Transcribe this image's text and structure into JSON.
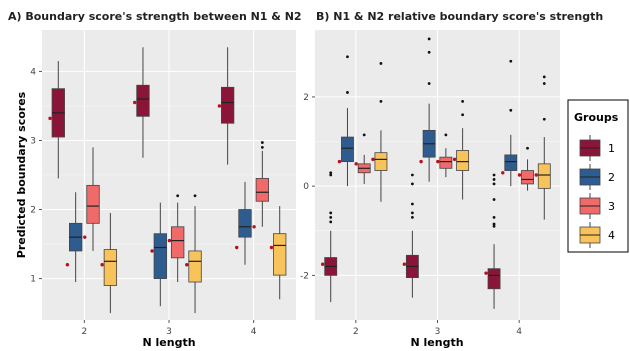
{
  "colors": {
    "panel_bg": "#ebebeb",
    "grid": "#ffffff",
    "outlier": "#111111",
    "mean_dot": "#b5121b",
    "box_stroke": "#444444"
  },
  "chart_data": [
    {
      "type": "box",
      "title": "A) Boundary score's strength between N1 & N2",
      "xlabel": "N length",
      "ylabel": "Predicted boundary scores",
      "categories": [
        "2",
        "3",
        "4"
      ],
      "ylim": [
        0.4,
        4.6
      ],
      "yticks": [
        1,
        2,
        3,
        4
      ],
      "grid": true,
      "series": [
        {
          "name": "1",
          "color": "#8b1538",
          "boxes": [
            {
              "min": 2.45,
              "q1": 3.05,
              "median": 3.4,
              "q3": 3.75,
              "max": 4.15,
              "mean": 3.32,
              "outliers": []
            },
            {
              "min": 2.75,
              "q1": 3.35,
              "median": 3.6,
              "q3": 3.8,
              "max": 4.35,
              "mean": 3.55,
              "outliers": []
            },
            {
              "min": 2.65,
              "q1": 3.25,
              "median": 3.55,
              "q3": 3.77,
              "max": 4.35,
              "mean": 3.5,
              "outliers": []
            }
          ]
        },
        {
          "name": "2",
          "color": "#2f5c8f",
          "boxes": [
            {
              "min": 0.95,
              "q1": 1.4,
              "median": 1.6,
              "q3": 1.8,
              "max": 2.25,
              "mean": 1.2,
              "outliers": []
            },
            {
              "min": 0.6,
              "q1": 1.0,
              "median": 1.45,
              "q3": 1.65,
              "max": 2.1,
              "mean": 1.4,
              "outliers": []
            },
            {
              "min": 1.2,
              "q1": 1.6,
              "median": 1.75,
              "q3": 2.0,
              "max": 2.4,
              "mean": 1.45,
              "outliers": []
            }
          ]
        },
        {
          "name": "3",
          "color": "#f06a6a",
          "boxes": [
            {
              "min": 1.4,
              "q1": 1.8,
              "median": 2.05,
              "q3": 2.35,
              "max": 2.9,
              "mean": 1.6,
              "outliers": []
            },
            {
              "min": 0.95,
              "q1": 1.3,
              "median": 1.55,
              "q3": 1.75,
              "max": 2.1,
              "mean": 1.55,
              "outliers": [
                2.2
              ]
            },
            {
              "min": 1.75,
              "q1": 2.12,
              "median": 2.25,
              "q3": 2.45,
              "max": 2.85,
              "mean": 1.75,
              "outliers": [
                2.9,
                2.97
              ]
            }
          ]
        },
        {
          "name": "4",
          "color": "#f8c35b",
          "boxes": [
            {
              "min": 0.5,
              "q1": 0.9,
              "median": 1.25,
              "q3": 1.42,
              "max": 1.95,
              "mean": 1.2,
              "outliers": []
            },
            {
              "min": 0.5,
              "q1": 0.95,
              "median": 1.25,
              "q3": 1.4,
              "max": 2.05,
              "mean": 1.2,
              "outliers": [
                2.2
              ]
            },
            {
              "min": 0.7,
              "q1": 1.05,
              "median": 1.48,
              "q3": 1.65,
              "max": 2.05,
              "mean": 1.45,
              "outliers": []
            }
          ]
        }
      ]
    },
    {
      "type": "box",
      "title": "B) N1 & N2 relative boundary score's strength",
      "xlabel": "N length",
      "ylabel": "",
      "categories": [
        "2",
        "3",
        "4"
      ],
      "ylim": [
        -3.0,
        3.5
      ],
      "yticks": [
        -2,
        0,
        2
      ],
      "grid": true,
      "series": [
        {
          "name": "1",
          "color": "#8b1538",
          "boxes": [
            {
              "min": -2.6,
              "q1": -2.0,
              "median": -1.8,
              "q3": -1.6,
              "max": -1.0,
              "mean": -1.75,
              "outliers": [
                -0.6,
                -0.7,
                -0.8,
                0.25,
                0.3
              ]
            },
            {
              "min": -2.5,
              "q1": -2.05,
              "median": -1.8,
              "q3": -1.55,
              "max": -1.0,
              "mean": -1.75,
              "outliers": [
                -0.4,
                -0.6,
                -0.7,
                0.25,
                0.05
              ]
            },
            {
              "min": -2.75,
              "q1": -2.3,
              "median": -2.0,
              "q3": -1.85,
              "max": -1.3,
              "mean": -1.95,
              "outliers": [
                -0.7,
                -0.85,
                -0.9,
                0.15,
                0.25,
                0.05,
                -0.3
              ]
            }
          ]
        },
        {
          "name": "2",
          "color": "#2f5c8f",
          "boxes": [
            {
              "min": 0.0,
              "q1": 0.55,
              "median": 0.85,
              "q3": 1.1,
              "max": 1.75,
              "mean": 0.55,
              "outliers": [
                2.1,
                2.9
              ]
            },
            {
              "min": 0.1,
              "q1": 0.65,
              "median": 0.95,
              "q3": 1.25,
              "max": 1.85,
              "mean": 0.55,
              "outliers": [
                2.3,
                3.0,
                3.3
              ]
            },
            {
              "min": 0.0,
              "q1": 0.35,
              "median": 0.55,
              "q3": 0.7,
              "max": 1.15,
              "mean": 0.3,
              "outliers": [
                1.7,
                2.8
              ]
            }
          ]
        },
        {
          "name": "3",
          "color": "#f06a6a",
          "boxes": [
            {
              "min": 0.05,
              "q1": 0.3,
              "median": 0.4,
              "q3": 0.5,
              "max": 0.7,
              "mean": 0.5,
              "outliers": [
                1.15
              ]
            },
            {
              "min": 0.2,
              "q1": 0.4,
              "median": 0.55,
              "q3": 0.65,
              "max": 0.85,
              "mean": 0.55,
              "outliers": [
                1.15
              ]
            },
            {
              "min": -0.1,
              "q1": 0.05,
              "median": 0.15,
              "q3": 0.35,
              "max": 0.6,
              "mean": 0.25,
              "outliers": [
                0.85
              ]
            }
          ]
        },
        {
          "name": "4",
          "color": "#f8c35b",
          "boxes": [
            {
              "min": -0.35,
              "q1": 0.35,
              "median": 0.6,
              "q3": 0.75,
              "max": 1.25,
              "mean": 0.6,
              "outliers": [
                1.9,
                2.75
              ]
            },
            {
              "min": -0.3,
              "q1": 0.35,
              "median": 0.55,
              "q3": 0.8,
              "max": 1.3,
              "mean": 0.6,
              "outliers": [
                1.6,
                1.9
              ]
            },
            {
              "min": -0.75,
              "q1": -0.05,
              "median": 0.25,
              "q3": 0.5,
              "max": 1.1,
              "mean": 0.25,
              "outliers": [
                1.5,
                2.3,
                2.45
              ]
            }
          ]
        }
      ]
    }
  ],
  "legend": {
    "title": "Groups",
    "position": "right",
    "items": [
      "1",
      "2",
      "3",
      "4"
    ]
  }
}
